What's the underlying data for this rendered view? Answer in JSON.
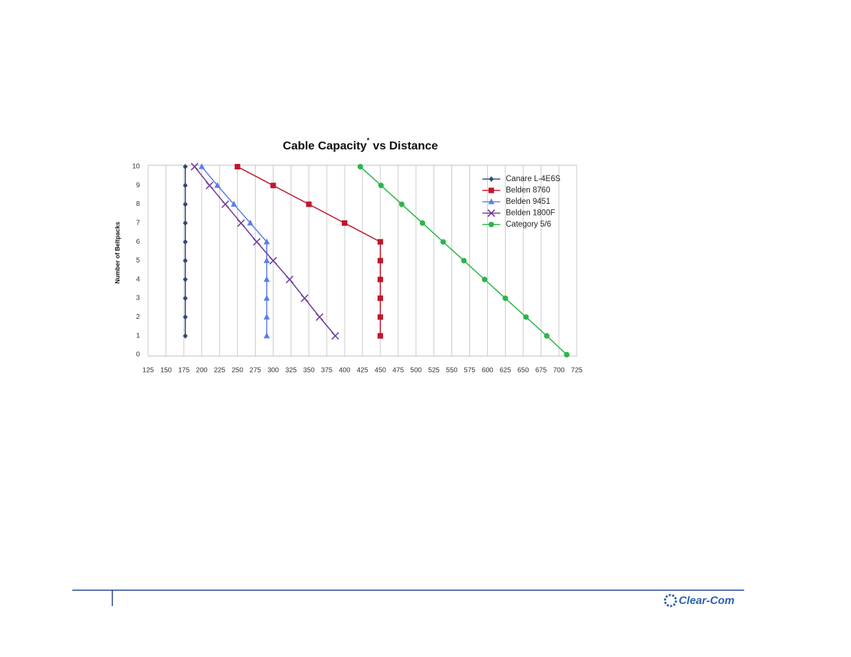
{
  "chart_data": {
    "type": "line",
    "title": "Cable Capacity",
    "title_note": "*",
    "title_end": "vs Distance",
    "ylabel": "Number of Beltpacks",
    "xlim": [
      125,
      725
    ],
    "xticks": [
      125,
      150,
      175,
      200,
      225,
      250,
      275,
      300,
      325,
      350,
      375,
      400,
      425,
      450,
      475,
      500,
      525,
      550,
      575,
      600,
      625,
      650,
      675,
      700,
      725
    ],
    "ylim": [
      0,
      10
    ],
    "yticks": [
      0,
      1,
      2,
      3,
      4,
      5,
      6,
      7,
      8,
      9,
      10
    ],
    "grid": "x",
    "legend": "top-right",
    "series": [
      {
        "name": "Canare L-4E6S",
        "color": "#2e4a7a",
        "marker": "diamond",
        "x": [
          177,
          177,
          177,
          177,
          177,
          177,
          177,
          177,
          177,
          177
        ],
        "values": [
          10,
          9,
          8,
          7,
          6,
          5,
          4,
          3,
          2,
          1
        ]
      },
      {
        "name": "Belden 8760",
        "color": "#c0172c",
        "marker": "square",
        "x": [
          250,
          300,
          350,
          400,
          450,
          450,
          450,
          450,
          450,
          450
        ],
        "values": [
          10,
          9,
          8,
          7,
          6,
          5,
          4,
          3,
          2,
          1
        ]
      },
      {
        "name": "Belden 9451",
        "color": "#5b7fe8",
        "marker": "triangle",
        "x": [
          200,
          222,
          245,
          268,
          291,
          291,
          291,
          291,
          291,
          291
        ],
        "values": [
          10,
          9,
          8,
          7,
          6,
          5,
          4,
          3,
          2,
          1
        ]
      },
      {
        "name": "Belden 1800F",
        "color": "#6f3a9a",
        "marker": "x",
        "x": [
          190,
          211,
          233,
          255,
          277,
          300,
          323,
          344,
          365,
          387
        ],
        "values": [
          10,
          9,
          8,
          7,
          6,
          5,
          4,
          3,
          2,
          1
        ]
      },
      {
        "name": "Category 5/6",
        "color": "#2db44a",
        "marker": "circle",
        "x": [
          422,
          451,
          480,
          509,
          538,
          567,
          596,
          625,
          654,
          683,
          711
        ],
        "values": [
          10,
          9,
          8,
          7,
          6,
          5,
          4,
          3,
          2,
          1,
          0
        ]
      }
    ]
  },
  "footer": {
    "logo": "Clear-Com"
  }
}
